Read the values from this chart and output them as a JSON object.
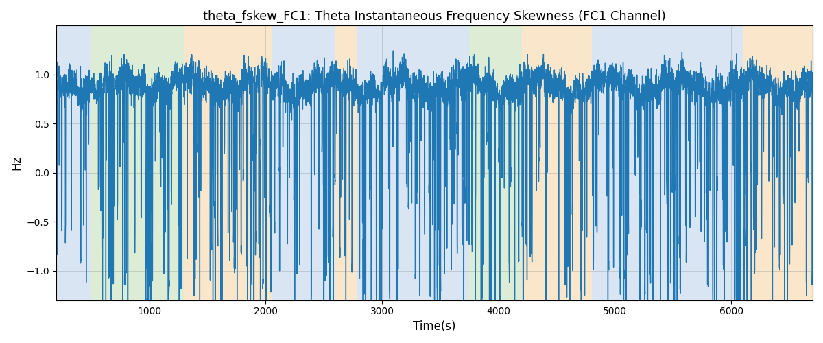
{
  "title": "theta_fskew_FC1: Theta Instantaneous Frequency Skewness (FC1 Channel)",
  "xlabel": "Time(s)",
  "ylabel": "Hz",
  "xlim": [
    200,
    6700
  ],
  "ylim": [
    -1.3,
    1.5
  ],
  "grid": true,
  "line_color": "#1f77b4",
  "line_width": 1.0,
  "bg_bands": [
    {
      "xmin": 200,
      "xmax": 500,
      "color": "#aec6e8",
      "alpha": 0.45
    },
    {
      "xmin": 500,
      "xmax": 1300,
      "color": "#b5d5a0",
      "alpha": 0.45
    },
    {
      "xmin": 1300,
      "xmax": 2050,
      "color": "#f5c98a",
      "alpha": 0.45
    },
    {
      "xmin": 2050,
      "xmax": 2600,
      "color": "#aec6e8",
      "alpha": 0.45
    },
    {
      "xmin": 2600,
      "xmax": 2780,
      "color": "#f5c98a",
      "alpha": 0.45
    },
    {
      "xmin": 2780,
      "xmax": 3650,
      "color": "#aec6e8",
      "alpha": 0.45
    },
    {
      "xmin": 3650,
      "xmax": 3750,
      "color": "#aec6e8",
      "alpha": 0.45
    },
    {
      "xmin": 3750,
      "xmax": 4200,
      "color": "#b5d5a0",
      "alpha": 0.45
    },
    {
      "xmin": 4200,
      "xmax": 4800,
      "color": "#f5c98a",
      "alpha": 0.45
    },
    {
      "xmin": 4800,
      "xmax": 6100,
      "color": "#aec6e8",
      "alpha": 0.45
    },
    {
      "xmin": 6100,
      "xmax": 6700,
      "color": "#f5c98a",
      "alpha": 0.45
    }
  ],
  "seed": 42,
  "n_points": 6500,
  "x_start": 200,
  "x_end": 6700
}
